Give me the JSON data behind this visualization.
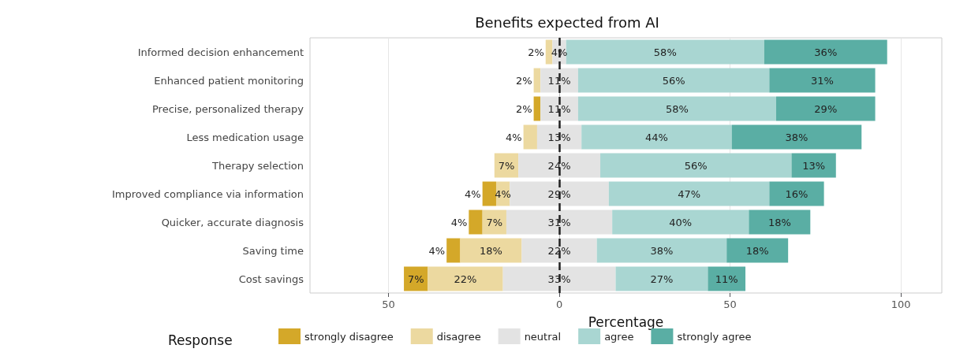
{
  "chart_data": {
    "type": "bar",
    "title": "Benefits expected from AI",
    "xlabel": "Percentage",
    "legend_title": "Response",
    "orientation": "horizontal",
    "categories": [
      "Informed decision enhancement",
      "Enhanced patient monitoring",
      "Precise, personalized therapy",
      "Less medication usage",
      "Therapy selection",
      "Improved compliance via information",
      "Quicker, accurate diagnosis",
      "Saving time",
      "Cost savings"
    ],
    "series": [
      {
        "name": "strongly disagree",
        "color": "#d4a829",
        "values": [
          0,
          0,
          2,
          0,
          0,
          4,
          4,
          4,
          7
        ],
        "base": [
          null,
          null,
          -7.5,
          null,
          null,
          -22.5,
          -26.5,
          -33,
          -45.5
        ],
        "value_labels": [
          null,
          null,
          "2%",
          null,
          null,
          "4%",
          "4%",
          "4%",
          "7%"
        ]
      },
      {
        "name": "disagree",
        "color": "#ecd9a0",
        "values": [
          2,
          2,
          0,
          4,
          7,
          4,
          7,
          18,
          22
        ],
        "base": [
          -4,
          -7.5,
          null,
          -10.5,
          -19,
          -18.5,
          -22.5,
          -29,
          -38.5
        ],
        "value_labels": [
          "2%",
          "2%",
          null,
          "4%",
          "7%",
          "4%",
          "7%",
          "18%",
          "22%"
        ]
      },
      {
        "name": "neutral",
        "color": "#e3e3e3",
        "values": [
          4,
          11,
          11,
          13,
          24,
          29,
          31,
          22,
          33
        ],
        "base": [
          -2,
          -5.5,
          -5.5,
          -6.5,
          -12,
          -14.5,
          -15.5,
          -11,
          -16.5
        ],
        "value_labels": [
          "4%",
          "11%",
          "11%",
          "13%",
          "24%",
          "29%",
          "31%",
          "22%",
          "33%"
        ]
      },
      {
        "name": "agree",
        "color": "#a9d6d2",
        "values": [
          58,
          56,
          58,
          44,
          56,
          47,
          40,
          38,
          27
        ],
        "base": [
          2,
          5.5,
          5.5,
          6.5,
          12,
          14.5,
          15.5,
          11,
          16.5
        ],
        "value_labels": [
          "58%",
          "56%",
          "58%",
          "44%",
          "56%",
          "47%",
          "40%",
          "38%",
          "27%"
        ]
      },
      {
        "name": "strongly agree",
        "color": "#5aaea4",
        "values": [
          36,
          31,
          29,
          38,
          13,
          16,
          18,
          18,
          11
        ],
        "base": [
          60,
          61.5,
          63.5,
          50.5,
          68,
          61.5,
          55.5,
          49,
          43.5
        ],
        "value_labels": [
          "36%",
          "31%",
          "29%",
          "38%",
          "13%",
          "16%",
          "18%",
          "18%",
          "11%"
        ]
      }
    ],
    "xlim": [
      -73,
      112
    ],
    "xticks": [
      {
        "value": -50,
        "label": "50"
      },
      0,
      50,
      100
    ],
    "ref_lines": [
      {
        "axis": "x",
        "value": 0,
        "color": "#222222",
        "line_style": "dashed"
      }
    ],
    "grid": "x",
    "legend": "bottom"
  }
}
